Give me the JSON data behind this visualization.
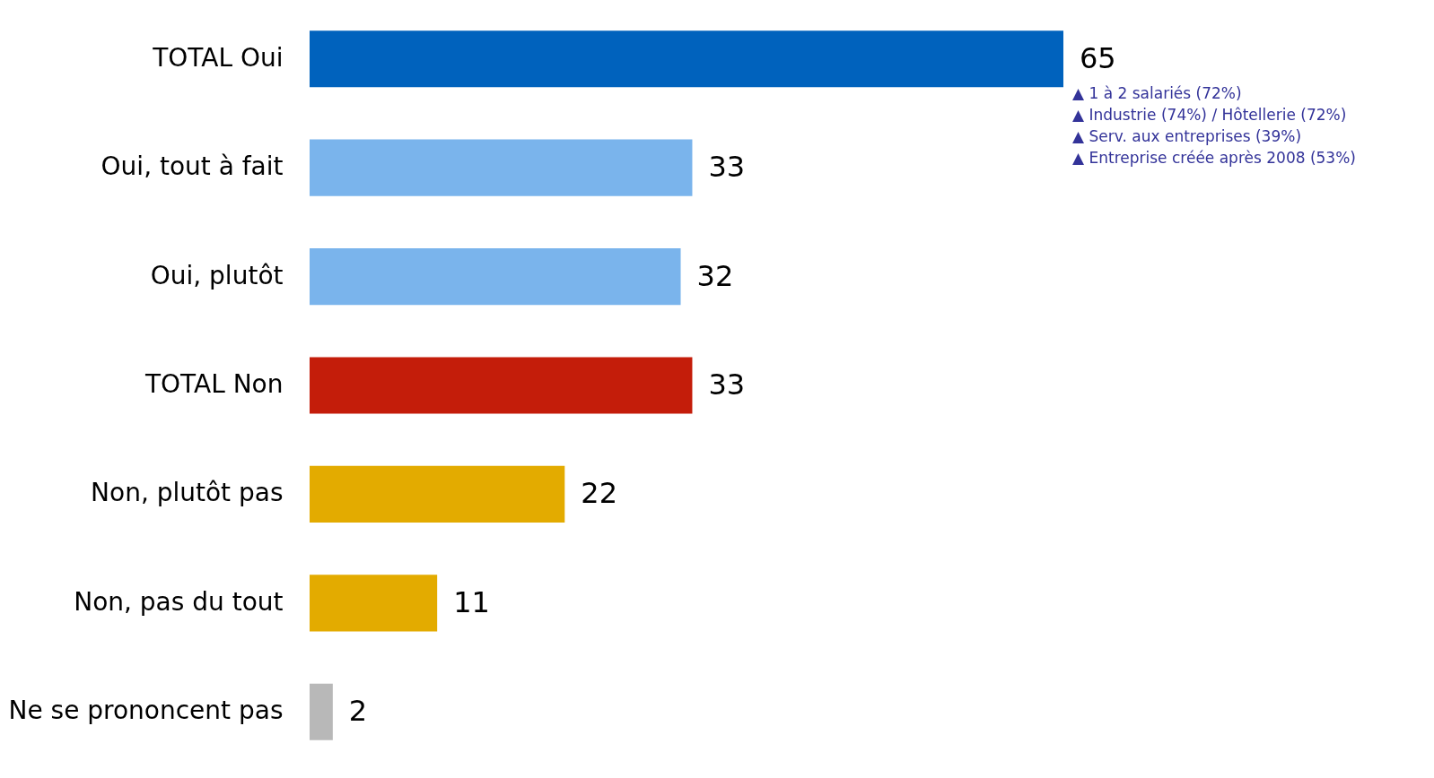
{
  "chart_data": {
    "type": "bar",
    "orientation": "horizontal",
    "data_labels": true,
    "categories": [
      "TOTAL Oui",
      "Oui, tout à fait",
      "Oui, plutôt",
      "TOTAL Non",
      "Non, plutôt pas",
      "Non, pas du tout",
      "Ne se prononcent pas"
    ],
    "values": [
      65,
      33,
      32,
      33,
      22,
      11,
      2
    ],
    "colors": [
      "#0062bd",
      "#7ab4ec",
      "#7ab4ec",
      "#c41d0a",
      "#e3ab00",
      "#e3ab00",
      "#b8b8b8"
    ],
    "annotations": [
      "▲ 1 à 2 salariés (72%)",
      "▲ Industrie (74%) / Hôtellerie (72%)",
      "▲ Serv. aux entreprises (39%)",
      "▲ Entreprise créée après 2008 (53%)"
    ]
  }
}
